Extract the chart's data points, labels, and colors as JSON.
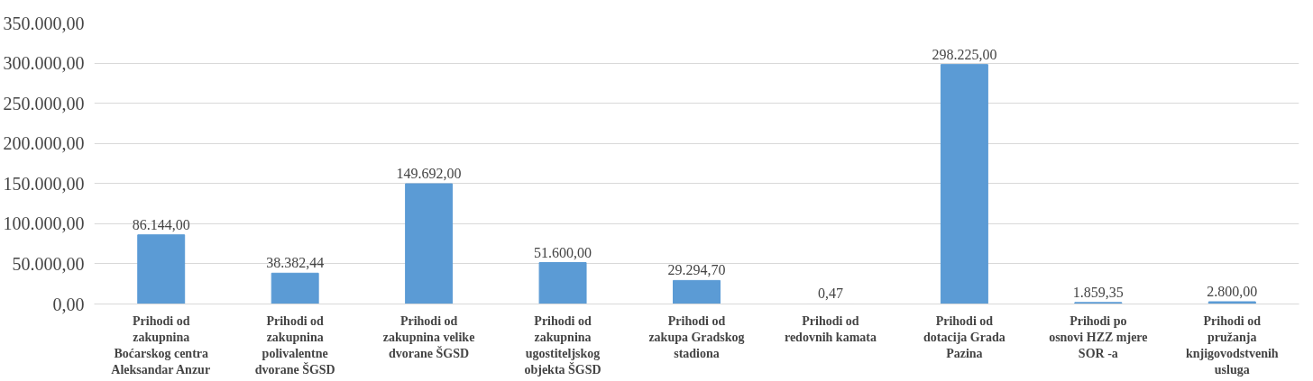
{
  "chart_data": {
    "type": "bar",
    "categories": [
      "Prihodi od zakupnina Boćarskog centra Aleksandar Anzur",
      "Prihodi od zakupnina polivalentne dvorane ŠGSD",
      "Prihodi od zakupnina velike dvorane ŠGSD",
      "Prihodi od zakupnina ugostiteljskog objekta ŠGSD",
      "Prihodi od zakupa Gradskog stadiona",
      "Prihodi od redovnih kamata",
      "Prihodi od dotacija Grada Pazina",
      "Prihodi po osnovi HZZ mjere SOR -a",
      "Prihodi od pružanja knjigovodstvenih usluga"
    ],
    "values": [
      86144.0,
      38382.44,
      149692.0,
      51600.0,
      29294.7,
      0.47,
      298225.0,
      1859.35,
      2800.0
    ],
    "color": "#5b9bd5",
    "ylim": [
      0,
      350000
    ],
    "yticks": [
      {
        "value": 0,
        "label": "0,00"
      },
      {
        "value": 50000,
        "label": "50.000,00"
      },
      {
        "value": 100000,
        "label": "100.000,00"
      },
      {
        "value": 150000,
        "label": "150.000,00"
      },
      {
        "value": 200000,
        "label": "200.000,00"
      },
      {
        "value": 250000,
        "label": "250.000,00"
      },
      {
        "value": 300000,
        "label": "300.000,00"
      },
      {
        "value": 350000,
        "label": "350.000,00"
      }
    ],
    "grid": "y",
    "value_labels": [
      "86.144,00",
      "38.382,44",
      "149.692,00",
      "51.600,00",
      "29.294,70",
      "0,47",
      "298.225,00",
      "1.859,35",
      "2.800,00"
    ]
  }
}
